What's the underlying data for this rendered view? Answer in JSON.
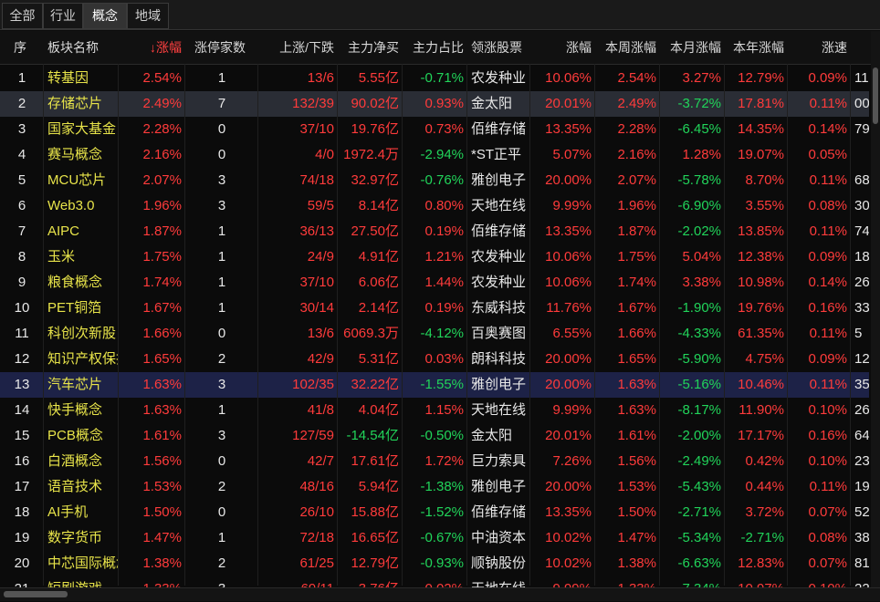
{
  "tabs": [
    "全部",
    "行业",
    "概念",
    "地域"
  ],
  "active_tab": 2,
  "columns": [
    "序",
    "板块名称",
    "涨幅",
    "涨停家数",
    "上涨/下跌",
    "主力净买",
    "主力占比",
    "领涨股票",
    "涨幅",
    "本周涨幅",
    "本月涨幅",
    "本年涨幅",
    "涨速",
    ""
  ],
  "sort_indicator": "↓",
  "colors": {
    "up": "#ff3b3b",
    "down": "#21d45a",
    "name": "#e8e44a",
    "neutral": "#e8e8e8"
  },
  "rows": [
    [
      "1",
      "转基因",
      "2.54%",
      "1",
      "13/6",
      "5.55亿",
      "-0.71%",
      "农发种业",
      "10.06%",
      "2.54%",
      "3.27%",
      "12.79%",
      "0.09%",
      "11"
    ],
    [
      "2",
      "存储芯片",
      "2.49%",
      "7",
      "132/39",
      "90.02亿",
      "0.93%",
      "金太阳",
      "20.01%",
      "2.49%",
      "-3.72%",
      "17.81%",
      "0.11%",
      "00"
    ],
    [
      "3",
      "国家大基金",
      "2.28%",
      "0",
      "37/10",
      "19.76亿",
      "0.73%",
      "佰维存储",
      "13.35%",
      "2.28%",
      "-6.45%",
      "14.35%",
      "0.14%",
      "79"
    ],
    [
      "4",
      "赛马概念",
      "2.16%",
      "0",
      "4/0",
      "1972.4万",
      "-2.94%",
      "*ST正平",
      "5.07%",
      "2.16%",
      "1.28%",
      "19.07%",
      "0.05%",
      ""
    ],
    [
      "5",
      "MCU芯片",
      "2.07%",
      "3",
      "74/18",
      "32.97亿",
      "-0.76%",
      "雅创电子",
      "20.00%",
      "2.07%",
      "-5.78%",
      "8.70%",
      "0.11%",
      "68"
    ],
    [
      "6",
      "Web3.0",
      "1.96%",
      "3",
      "59/5",
      "8.14亿",
      "0.80%",
      "天地在线",
      "9.99%",
      "1.96%",
      "-6.90%",
      "3.55%",
      "0.08%",
      "30"
    ],
    [
      "7",
      "AIPC",
      "1.87%",
      "1",
      "36/13",
      "27.50亿",
      "0.19%",
      "佰维存储",
      "13.35%",
      "1.87%",
      "-2.02%",
      "13.85%",
      "0.11%",
      "74"
    ],
    [
      "8",
      "玉米",
      "1.75%",
      "1",
      "24/9",
      "4.91亿",
      "1.21%",
      "农发种业",
      "10.06%",
      "1.75%",
      "5.04%",
      "12.38%",
      "0.09%",
      "18"
    ],
    [
      "9",
      "粮食概念",
      "1.74%",
      "1",
      "37/10",
      "6.06亿",
      "1.44%",
      "农发种业",
      "10.06%",
      "1.74%",
      "3.38%",
      "10.98%",
      "0.14%",
      "26"
    ],
    [
      "10",
      "PET铜箔",
      "1.67%",
      "1",
      "30/14",
      "2.14亿",
      "0.19%",
      "东威科技",
      "11.76%",
      "1.67%",
      "-1.90%",
      "19.76%",
      "0.16%",
      "33"
    ],
    [
      "11",
      "科创次新股",
      "1.66%",
      "0",
      "13/6",
      "6069.3万",
      "-4.12%",
      "百奥赛图",
      "6.55%",
      "1.66%",
      "-4.33%",
      "61.35%",
      "0.11%",
      "5"
    ],
    [
      "12",
      "知识产权保护",
      "1.65%",
      "2",
      "42/9",
      "5.31亿",
      "0.03%",
      "朗科科技",
      "20.00%",
      "1.65%",
      "-5.90%",
      "4.75%",
      "0.09%",
      "12"
    ],
    [
      "13",
      "汽车芯片",
      "1.63%",
      "3",
      "102/35",
      "32.22亿",
      "-1.55%",
      "雅创电子",
      "20.00%",
      "1.63%",
      "-5.16%",
      "10.46%",
      "0.11%",
      "35"
    ],
    [
      "14",
      "快手概念",
      "1.63%",
      "1",
      "41/8",
      "4.04亿",
      "1.15%",
      "天地在线",
      "9.99%",
      "1.63%",
      "-8.17%",
      "11.90%",
      "0.10%",
      "26"
    ],
    [
      "15",
      "PCB概念",
      "1.61%",
      "3",
      "127/59",
      "-14.54亿",
      "-0.50%",
      "金太阳",
      "20.01%",
      "1.61%",
      "-2.00%",
      "17.17%",
      "0.16%",
      "64"
    ],
    [
      "16",
      "白酒概念",
      "1.56%",
      "0",
      "42/7",
      "17.61亿",
      "1.72%",
      "巨力索具",
      "7.26%",
      "1.56%",
      "-2.49%",
      "0.42%",
      "0.10%",
      "23"
    ],
    [
      "17",
      "语音技术",
      "1.53%",
      "2",
      "48/16",
      "5.94亿",
      "-1.38%",
      "雅创电子",
      "20.00%",
      "1.53%",
      "-5.43%",
      "0.44%",
      "0.11%",
      "19"
    ],
    [
      "18",
      "AI手机",
      "1.50%",
      "0",
      "26/10",
      "15.88亿",
      "-1.52%",
      "佰维存储",
      "13.35%",
      "1.50%",
      "-2.71%",
      "3.72%",
      "0.07%",
      "52"
    ],
    [
      "19",
      "数字货币",
      "1.47%",
      "1",
      "72/18",
      "16.65亿",
      "-0.67%",
      "中油资本",
      "10.02%",
      "1.47%",
      "-5.34%",
      "-2.71%",
      "0.08%",
      "38"
    ],
    [
      "20",
      "中芯国际概念",
      "1.38%",
      "2",
      "61/25",
      "12.79亿",
      "-0.93%",
      "顺钠股份",
      "10.02%",
      "1.38%",
      "-6.63%",
      "12.83%",
      "0.07%",
      "81"
    ],
    [
      "21",
      "短剧游戏",
      "1.33%",
      "3",
      "69/11",
      "3.76亿",
      "0.02%",
      "天地在线",
      "9.99%",
      "1.33%",
      "-7.34%",
      "10.97%",
      "0.10%",
      "22"
    ]
  ]
}
